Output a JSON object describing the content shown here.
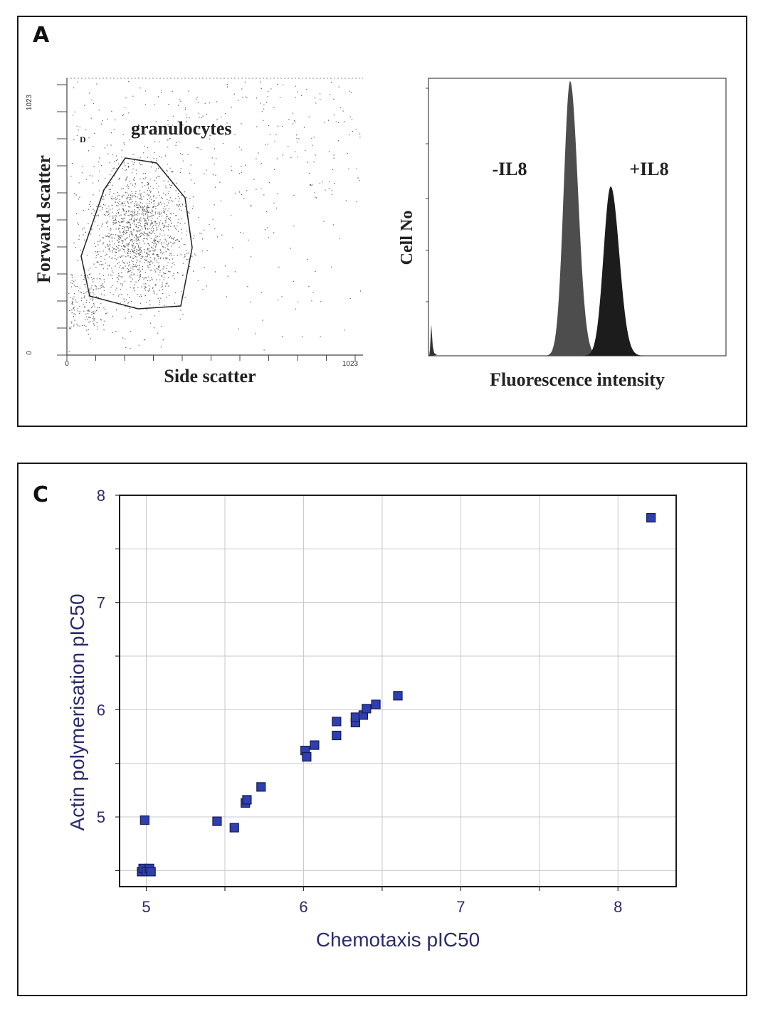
{
  "panelA": {
    "letter": "A",
    "scatter": {
      "gate_label": "granulocytes",
      "gate_marker": "D",
      "xlabel": "Side scatter",
      "ylabel": "Forward scatter",
      "x_tick_min": "0",
      "x_tick_max": "1023",
      "y_tick_min": "0",
      "y_tick_max": "1023"
    },
    "histogram": {
      "xlabel": "Fluorescence intensity",
      "ylabel": "Cell No",
      "peak1_label": "-IL8",
      "peak2_label": "+IL8",
      "peak1_color": "#4d4d4d",
      "peak2_color": "#1c1c1c"
    }
  },
  "panelC": {
    "letter": "C"
  },
  "chart_data": {
    "type": "scatter",
    "title": "",
    "xlabel": "Chemotaxis pIC50",
    "ylabel": "Actin polymerisation pIC50",
    "xlim": [
      4.83,
      8.37
    ],
    "ylim": [
      4.35,
      8.0
    ],
    "xticks": [
      "5",
      "6",
      "7",
      "8"
    ],
    "yticks": [
      "5",
      "6",
      "7",
      "8"
    ],
    "grid": true,
    "marker_color": "#2e3fb0",
    "label_color": "#2b2b6b",
    "series": [
      {
        "points": [
          [
            4.97,
            4.49
          ],
          [
            4.98,
            4.52
          ],
          [
            5.0,
            4.49
          ],
          [
            5.02,
            4.52
          ],
          [
            5.03,
            4.49
          ],
          [
            4.99,
            4.97
          ],
          [
            5.45,
            4.96
          ],
          [
            5.56,
            4.9
          ],
          [
            5.63,
            5.13
          ],
          [
            5.64,
            5.16
          ],
          [
            5.73,
            5.28
          ],
          [
            6.01,
            5.62
          ],
          [
            6.02,
            5.56
          ],
          [
            6.07,
            5.67
          ],
          [
            6.21,
            5.76
          ],
          [
            6.21,
            5.89
          ],
          [
            6.33,
            5.88
          ],
          [
            6.33,
            5.93
          ],
          [
            6.38,
            5.95
          ],
          [
            6.4,
            6.01
          ],
          [
            6.46,
            6.05
          ],
          [
            6.6,
            6.13
          ],
          [
            8.21,
            7.79
          ]
        ]
      }
    ]
  }
}
